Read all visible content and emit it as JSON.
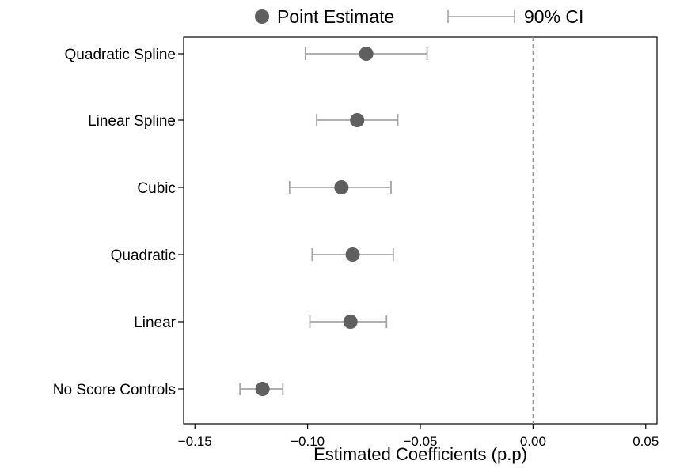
{
  "colors": {
    "point": "#5f5f5f",
    "ci": "#a6a6a6",
    "reference_line": "#9a9a9a",
    "axis": "#000000"
  },
  "chart_data": {
    "type": "scatter",
    "xlabel": "Estimated Coefficients (p.p)",
    "ylabel": "",
    "xlim": [
      -0.155,
      0.055
    ],
    "xticks": [
      -0.15,
      -0.1,
      -0.05,
      0.0,
      0.05
    ],
    "xtick_labels": [
      "−0.15",
      "−0.10",
      "−0.05",
      "0.00",
      "0.05"
    ],
    "reference_line_x": 0.0,
    "grid": false,
    "legend": {
      "placement": "top-center",
      "items": [
        {
          "label": "Point Estimate",
          "symbol": "circle"
        },
        {
          "label": "90% CI",
          "symbol": "capped-line"
        }
      ]
    },
    "categories": [
      "Quadratic Spline",
      "Linear Spline",
      "Cubic",
      "Quadratic",
      "Linear",
      "No Score Controls"
    ],
    "series": [
      {
        "name": "Point Estimate",
        "values": [
          -0.074,
          -0.078,
          -0.085,
          -0.08,
          -0.081,
          -0.12
        ]
      },
      {
        "name": "90% CI",
        "lower": [
          -0.101,
          -0.096,
          -0.108,
          -0.098,
          -0.099,
          -0.13
        ],
        "upper": [
          -0.047,
          -0.06,
          -0.063,
          -0.062,
          -0.065,
          -0.111
        ]
      }
    ]
  }
}
